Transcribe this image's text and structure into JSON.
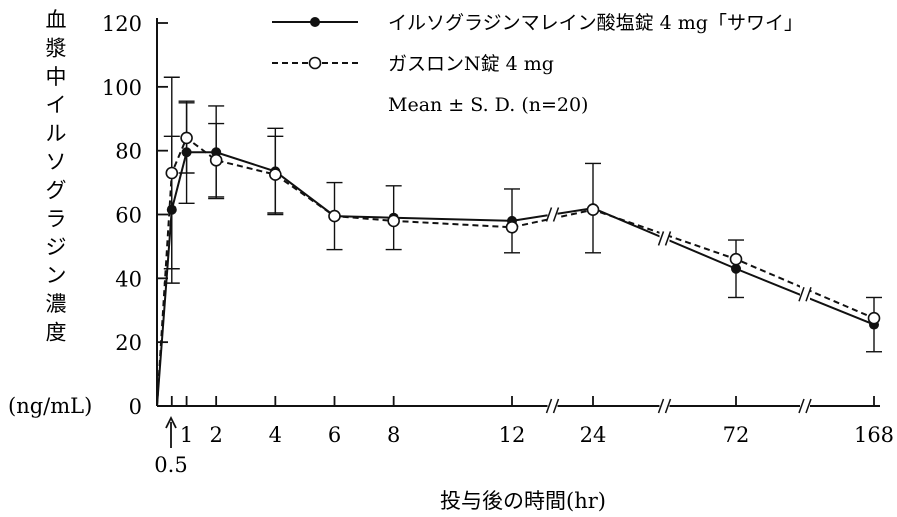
{
  "chart_data": {
    "type": "line",
    "title": "",
    "xlabel": "投与後の時間(hr)",
    "ylabel": "血漿中イルソグラジン濃度",
    "ylabel_unit": "(ng/mL)",
    "x_ticks": [
      "1",
      "2",
      "4",
      "6",
      "8",
      "12",
      "24",
      "72",
      "168"
    ],
    "x_extra_tick": "0.5",
    "y_ticks": [
      "0",
      "20",
      "40",
      "60",
      "80",
      "100",
      "120"
    ],
    "ylim": [
      0,
      120
    ],
    "axis_breaks": "between 12–24, 24–72, 72–168 hr",
    "x": [
      0,
      0.5,
      1,
      2,
      4,
      6,
      8,
      12,
      24,
      72,
      168
    ],
    "series": [
      {
        "name": "イルソグラジンマレイン酸塩錠 4 mg「サワイ」",
        "marker": "filled-circle",
        "line": "solid",
        "values": [
          0,
          61.5,
          79.5,
          79.5,
          73.5,
          59.5,
          59,
          58,
          62,
          43,
          25.5
        ],
        "sd": [
          0,
          23,
          16,
          14.5,
          13.5,
          10.5,
          10,
          10,
          14,
          9,
          8.5
        ]
      },
      {
        "name": "ガスロンN錠 4 mg",
        "marker": "open-circle",
        "line": "dashed",
        "values": [
          0,
          73,
          84,
          77,
          72.5,
          59.5,
          58,
          56,
          61.5,
          46,
          27.5
        ],
        "sd": [
          0,
          30,
          11,
          11.5,
          12,
          0,
          0,
          0,
          0,
          0,
          0
        ]
      }
    ],
    "annotation": "Mean ± S. D. (n=20)",
    "grid": false,
    "legend_position": "top-right"
  }
}
